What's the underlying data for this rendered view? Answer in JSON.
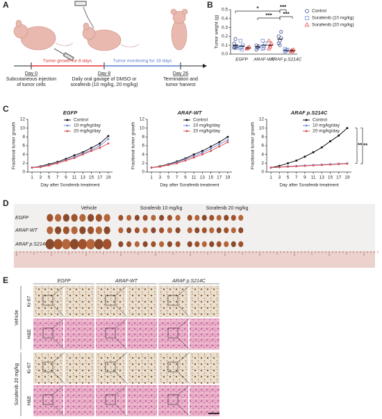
{
  "panels": {
    "a": "A",
    "b": "B",
    "c": "C",
    "d": "D",
    "e": "E"
  },
  "timeline": {
    "growth": "Tumor growth for 8 days",
    "monitoring": "Tumor monitoring for 18 days",
    "events": [
      {
        "day": "Day 0",
        "text": [
          "Subcutaneous injection",
          "of tumor cells"
        ]
      },
      {
        "day": "Day 8",
        "text": [
          "Daily oral gavage of DMSO or",
          "sorafenib (10 mg/kg, 20 mg/kg)"
        ]
      },
      {
        "day": "Day 26",
        "text": [
          "Termination and",
          "tumor harvest"
        ]
      }
    ]
  },
  "chart_data": [
    {
      "type": "dot",
      "ylabel": "Tumor weight (g)",
      "categories": [
        "EGFP",
        "ARAF-WT",
        "ARAF p.S214C"
      ],
      "ylim": [
        0,
        0.5
      ],
      "yticks": [
        {
          "value": 0,
          "label": "0.0"
        },
        0.1,
        0.2,
        0.3,
        0.4,
        0.5
      ],
      "series": [
        {
          "name": "Control",
          "color": "#3a4a8c",
          "marker": "circle",
          "values": [
            0.1,
            0.08,
            0.17
          ],
          "points": [
            [
              0.07,
              0.08,
              0.09,
              0.12,
              0.17,
              0.07,
              0.08
            ],
            [
              0.05,
              0.07,
              0.09,
              0.1,
              0.08
            ],
            [
              0.12,
              0.15,
              0.18,
              0.2,
              0.1,
              0.25
            ]
          ]
        },
        {
          "name": "Sorafenib (10 mg/kg)",
          "color": "#7b8fd6",
          "marker": "square",
          "values": [
            0.09,
            0.1,
            0.04
          ],
          "points": [
            [
              0.07,
              0.08,
              0.1,
              0.15,
              0.05
            ],
            [
              0.06,
              0.09,
              0.12,
              0.15,
              0.07
            ],
            [
              0.03,
              0.04,
              0.05,
              0.06,
              0.04
            ]
          ]
        },
        {
          "name": "Sorafenib (20 mg/kg)",
          "color": "#e05050",
          "marker": "triangle",
          "values": [
            0.07,
            0.1,
            0.04
          ],
          "points": [
            [
              0.06,
              0.07,
              0.08,
              0.06,
              0.07
            ],
            [
              0.06,
              0.08,
              0.12,
              0.15,
              0.1
            ],
            [
              0.03,
              0.04,
              0.05,
              0.04,
              0.03
            ]
          ]
        }
      ],
      "annotations": [
        "*",
        "***",
        "***",
        "***"
      ]
    },
    {
      "type": "line",
      "title": "EGFP",
      "xlabel": "Day after Sorafenib treatment",
      "ylabel": "Fractional tumor growth",
      "x": [
        1,
        3,
        5,
        7,
        9,
        11,
        13,
        15,
        17,
        19
      ],
      "xlim": [
        0,
        20
      ],
      "xticks": [
        1,
        3,
        5,
        7,
        9,
        11,
        13,
        15,
        17,
        19
      ],
      "ylim": [
        0,
        12
      ],
      "yticks": [
        0,
        2,
        4,
        6,
        8,
        10,
        12
      ],
      "series": [
        {
          "name": "Control",
          "color": "#111111",
          "values": [
            1,
            1.3,
            1.8,
            2.3,
            3,
            3.8,
            4.5,
            5.5,
            6.5,
            8.2
          ]
        },
        {
          "name": "10 mg/kg/day",
          "color": "#7b8fd6",
          "values": [
            1,
            1.2,
            1.6,
            2.1,
            2.7,
            3.4,
            4.2,
            5,
            6,
            7.5
          ]
        },
        {
          "name": "20 mg/kg/day",
          "color": "#e05050",
          "values": [
            1,
            1.1,
            1.5,
            2,
            2.6,
            3.2,
            4,
            4.8,
            5.5,
            6.5
          ]
        }
      ],
      "annotations": []
    },
    {
      "type": "line",
      "title": "ARAF-WT",
      "xlabel": "Day after Sorafenib treatment",
      "ylabel": "Fractional tumor growth",
      "x": [
        1,
        3,
        5,
        7,
        9,
        11,
        13,
        15,
        17,
        19
      ],
      "xlim": [
        0,
        20
      ],
      "xticks": [
        1,
        3,
        5,
        7,
        9,
        11,
        13,
        15,
        17,
        19
      ],
      "ylim": [
        0,
        12
      ],
      "yticks": [
        0,
        2,
        4,
        6,
        8,
        10,
        12
      ],
      "series": [
        {
          "name": "Control",
          "color": "#111111",
          "values": [
            1,
            1.3,
            1.8,
            2.4,
            3.1,
            4,
            4.8,
            5.8,
            6.8,
            8
          ]
        },
        {
          "name": "10 mg/kg/day",
          "color": "#7b8fd6",
          "values": [
            1,
            1.2,
            1.7,
            2.2,
            2.9,
            3.6,
            4.4,
            5.3,
            6.3,
            7.3
          ]
        },
        {
          "name": "20 mg/kg/day",
          "color": "#e05050",
          "values": [
            1,
            1.2,
            1.6,
            2,
            2.6,
            3.3,
            4,
            4.8,
            5.8,
            6.8
          ]
        }
      ],
      "annotations": []
    },
    {
      "type": "line",
      "title": "ARAF p.S214C",
      "xlabel": "Day after Sorafenib treatment",
      "ylabel": "Fractional tumor growth",
      "x": [
        1,
        3,
        5,
        7,
        9,
        11,
        13,
        15,
        17,
        19
      ],
      "xlim": [
        0,
        20
      ],
      "xticks": [
        1,
        3,
        5,
        7,
        9,
        11,
        13,
        15,
        17,
        19
      ],
      "ylim": [
        0,
        12
      ],
      "yticks": [
        0,
        2,
        4,
        6,
        8,
        10,
        12
      ],
      "series": [
        {
          "name": "Control",
          "color": "#111111",
          "values": [
            1,
            1.4,
            2,
            2.6,
            3.5,
            4.5,
            5.6,
            7,
            8.3,
            10
          ]
        },
        {
          "name": "10 mg/kg/day",
          "color": "#7b8fd6",
          "values": [
            1,
            1.1,
            1.3,
            1.4,
            1.5,
            1.6,
            1.7,
            1.8,
            1.9,
            2
          ]
        },
        {
          "name": "20 mg/kg/day",
          "color": "#e05050",
          "values": [
            1,
            1.1,
            1.2,
            1.3,
            1.4,
            1.5,
            1.6,
            1.7,
            1.8,
            1.9
          ]
        }
      ],
      "annotations": [
        "**",
        "**"
      ]
    }
  ],
  "photo": {
    "columns": [
      "Vehicle",
      "Sorafenib 10 mg/kg",
      "Sorafenib 20 mg/kg"
    ],
    "rows": [
      "EGFP",
      "ARAF-WT",
      "ARAF p.S214C"
    ]
  },
  "histology": {
    "columns": [
      "EGFP",
      "ARAF-WT",
      "ARAF p.S214C"
    ],
    "groups": [
      "Vehicle",
      "Sorafenib 20 mg/kg"
    ],
    "stains": [
      "Ki-67",
      "H&E",
      "Ki-67",
      "H&E"
    ]
  }
}
